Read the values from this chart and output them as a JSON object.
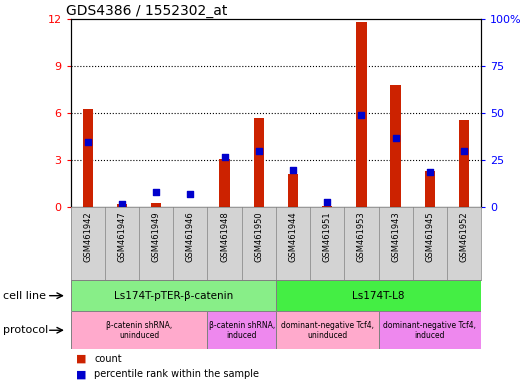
{
  "title": "GDS4386 / 1552302_at",
  "samples": [
    "GSM461942",
    "GSM461947",
    "GSM461949",
    "GSM461946",
    "GSM461948",
    "GSM461950",
    "GSM461944",
    "GSM461951",
    "GSM461953",
    "GSM461943",
    "GSM461945",
    "GSM461952"
  ],
  "counts": [
    6.3,
    0.2,
    0.3,
    0.05,
    3.1,
    5.7,
    2.1,
    0.08,
    11.8,
    7.8,
    2.3,
    5.6
  ],
  "percentiles": [
    35,
    2,
    8,
    7,
    27,
    30,
    20,
    3,
    49,
    37,
    19,
    30
  ],
  "ylim_left": [
    0,
    12
  ],
  "ylim_right": [
    0,
    100
  ],
  "yticks_left": [
    0,
    3,
    6,
    9,
    12
  ],
  "yticks_right": [
    0,
    25,
    50,
    75,
    100
  ],
  "ytick_right_labels": [
    "0",
    "25",
    "50",
    "75",
    "100%"
  ],
  "bar_color": "#cc2200",
  "dot_color": "#0000cc",
  "cell_line_groups": [
    {
      "label": "Ls174T-pTER-β-catenin",
      "start": 0,
      "end": 6,
      "color": "#88ee88"
    },
    {
      "label": "Ls174T-L8",
      "start": 6,
      "end": 12,
      "color": "#44ee44"
    }
  ],
  "protocol_groups": [
    {
      "label": "β-catenin shRNA,\nuninduced",
      "start": 0,
      "end": 4,
      "color": "#ffaacc"
    },
    {
      "label": "β-catenin shRNA,\ninduced",
      "start": 4,
      "end": 6,
      "color": "#ee88ee"
    },
    {
      "label": "dominant-negative Tcf4,\nuninduced",
      "start": 6,
      "end": 9,
      "color": "#ffaacc"
    },
    {
      "label": "dominant-negative Tcf4,\ninduced",
      "start": 9,
      "end": 12,
      "color": "#ee88ee"
    }
  ],
  "legend_count_label": "count",
  "legend_pct_label": "percentile rank within the sample",
  "xlabel_cell_line": "cell line",
  "xlabel_protocol": "protocol",
  "sample_box_color": "#d3d3d3",
  "plot_bg_color": "#ffffff",
  "bar_width": 0.3
}
